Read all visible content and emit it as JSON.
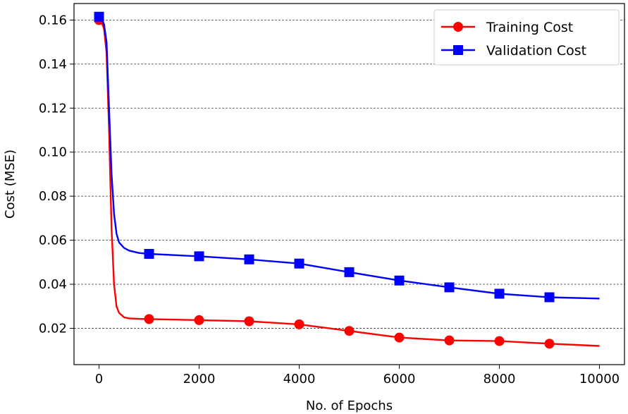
{
  "chart_data": {
    "type": "line",
    "title": "",
    "xlabel": "No. of Epochs",
    "ylabel": "Cost (MSE)",
    "xlim": [
      -500,
      10500
    ],
    "ylim": [
      0.0035,
      0.1675
    ],
    "xticks": [
      0,
      2000,
      4000,
      6000,
      8000,
      10000
    ],
    "xtick_labels": [
      "0",
      "2000",
      "4000",
      "6000",
      "8000",
      "10000"
    ],
    "yticks": [
      0.02,
      0.04,
      0.06,
      0.08,
      0.1,
      0.12,
      0.14,
      0.16
    ],
    "ytick_labels": [
      "0.02",
      "0.04",
      "0.06",
      "0.08",
      "0.10",
      "0.12",
      "0.14",
      "0.16"
    ],
    "grid": "y-dashed",
    "legend_position": "top-right",
    "series": [
      {
        "name": "Training Cost",
        "color": "#ff0000",
        "marker": "circle",
        "x": [
          0,
          50,
          100,
          150,
          200,
          250,
          300,
          350,
          400,
          500,
          600,
          800,
          1000,
          2000,
          3000,
          4000,
          5000,
          6000,
          7000,
          8000,
          9000,
          10000
        ],
        "y": [
          0.16,
          0.159,
          0.156,
          0.145,
          0.11,
          0.065,
          0.04,
          0.03,
          0.027,
          0.025,
          0.0245,
          0.0243,
          0.0242,
          0.0237,
          0.0232,
          0.0218,
          0.0188,
          0.0158,
          0.0145,
          0.0142,
          0.013,
          0.012
        ],
        "marker_x": [
          0,
          1000,
          2000,
          3000,
          4000,
          5000,
          6000,
          7000,
          8000,
          9000
        ],
        "marker_y": [
          0.16,
          0.0242,
          0.0237,
          0.0232,
          0.0218,
          0.0188,
          0.0158,
          0.0145,
          0.0142,
          0.013
        ]
      },
      {
        "name": "Validation Cost",
        "color": "#0000ff",
        "marker": "square",
        "x": [
          0,
          50,
          100,
          150,
          200,
          250,
          300,
          350,
          400,
          500,
          600,
          800,
          1000,
          2000,
          3000,
          4000,
          5000,
          6000,
          7000,
          8000,
          9000,
          10000
        ],
        "y": [
          0.1615,
          0.161,
          0.158,
          0.15,
          0.12,
          0.09,
          0.072,
          0.063,
          0.059,
          0.0565,
          0.0553,
          0.0542,
          0.0538,
          0.0527,
          0.0513,
          0.0494,
          0.0455,
          0.0417,
          0.0386,
          0.0357,
          0.0341,
          0.0335
        ],
        "marker_x": [
          0,
          1000,
          2000,
          3000,
          4000,
          5000,
          6000,
          7000,
          8000,
          9000
        ],
        "marker_y": [
          0.1615,
          0.0538,
          0.0527,
          0.0513,
          0.0494,
          0.0455,
          0.0417,
          0.0386,
          0.0357,
          0.0341
        ]
      }
    ]
  }
}
